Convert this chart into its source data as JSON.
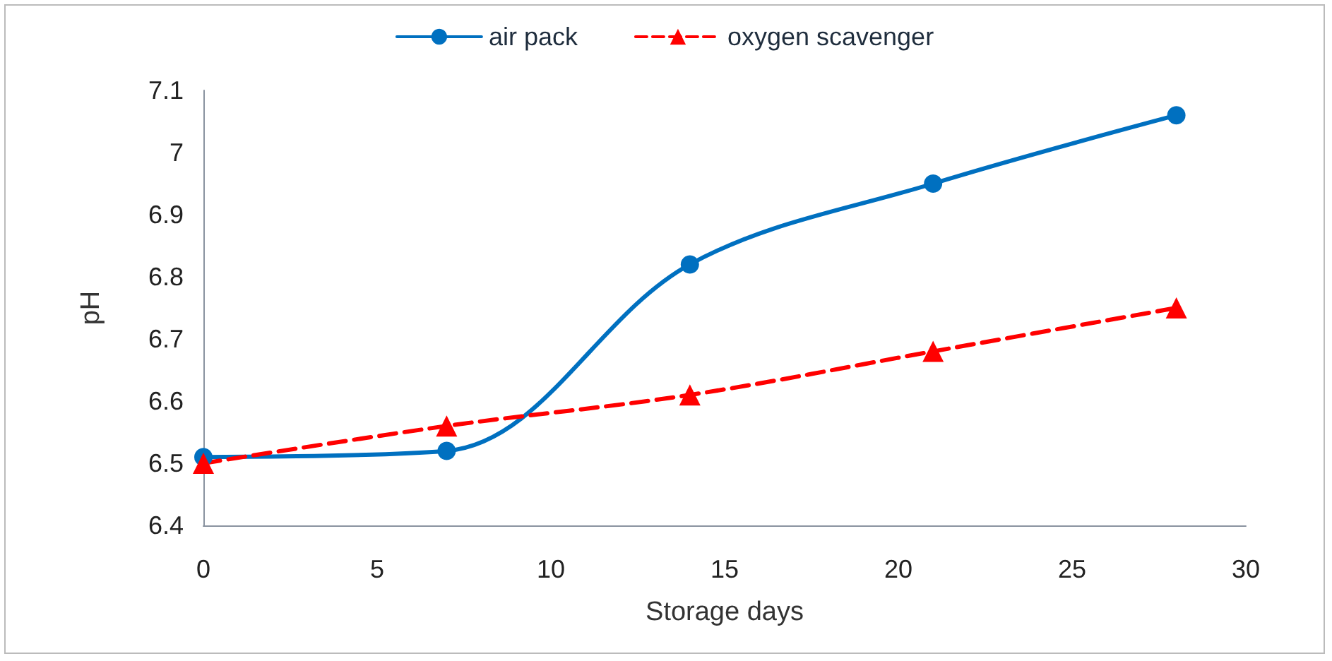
{
  "chart_data": {
    "type": "line",
    "xlabel": "Storage days",
    "ylabel": "pH",
    "x": [
      0,
      7,
      14,
      21,
      28
    ],
    "series": [
      {
        "name": "air pack",
        "color": "#0070c0",
        "values": [
          6.51,
          6.52,
          6.82,
          6.95,
          7.06
        ],
        "marker": "circle",
        "line_style": "solid"
      },
      {
        "name": "oxygen scavenger",
        "color": "#ff0000",
        "values": [
          6.5,
          6.56,
          6.61,
          6.68,
          6.75
        ],
        "marker": "triangle",
        "line_style": "dashed"
      }
    ],
    "xlim": [
      0,
      30
    ],
    "xticks": [
      0,
      5,
      10,
      15,
      20,
      25,
      30
    ],
    "ylim": [
      6.4,
      7.1
    ],
    "yticks": [
      6.4,
      6.5,
      6.6,
      6.7,
      6.8,
      6.9,
      7,
      7.1
    ],
    "grid": false,
    "legend": "top"
  }
}
